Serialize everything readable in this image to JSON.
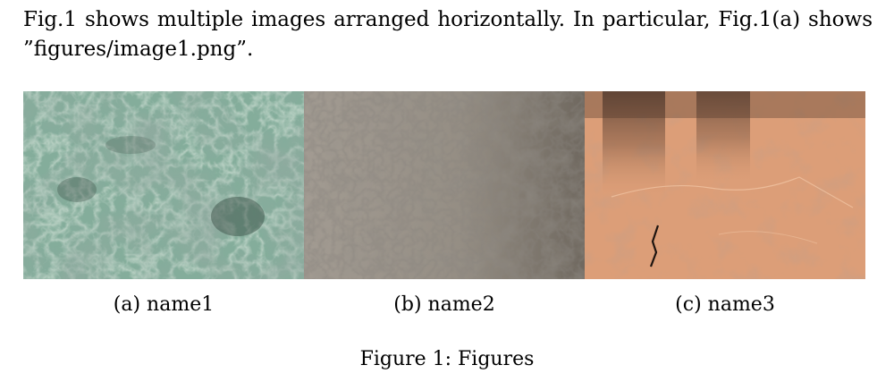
{
  "paragraph": {
    "line1": "Fig.1 shows multiple images arranged horizontally. In particular, Fig.1(a) shows",
    "line2": "”figures/image1.png”."
  },
  "subfigures": [
    {
      "caption": "(a) name1",
      "texture": "green-marble",
      "base_color": "#7fa896"
    },
    {
      "caption": "(b) name2",
      "texture": "gray-stone",
      "base_color": "#8a8379"
    },
    {
      "caption": "(c) name3",
      "texture": "orange-cracked-surface",
      "base_color": "#d89a72"
    }
  ],
  "figure_caption": "Figure 1: Figures"
}
